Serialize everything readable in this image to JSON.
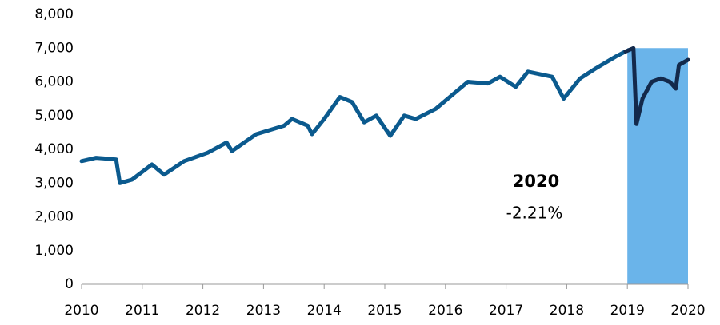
{
  "chart_data": {
    "type": "line",
    "xlim": [
      2010,
      2020
    ],
    "xticks": [
      2010,
      2011,
      2012,
      2013,
      2014,
      2015,
      2016,
      2017,
      2018,
      2019,
      2020
    ],
    "ylim": [
      0,
      8000
    ],
    "yticks": [
      0,
      {
        "value": 1000,
        "label": "1,000"
      },
      {
        "value": 2000,
        "label": "2,000"
      },
      {
        "value": 3000,
        "label": "3,000"
      },
      {
        "value": 4000,
        "label": "4,000"
      },
      {
        "value": 5000,
        "label": "5,000"
      },
      {
        "value": 6000,
        "label": "6,000"
      },
      {
        "value": 7000,
        "label": "7,000"
      },
      {
        "value": 8000,
        "label": "8,000"
      }
    ],
    "highlight": {
      "xlim": [
        2019,
        2020
      ],
      "ylim": [
        0,
        7000
      ],
      "color": "#6ab4ea"
    },
    "annotations": [
      {
        "text": "2020",
        "bold": true
      },
      {
        "text": "-2.21%",
        "bold": false
      }
    ],
    "series": [
      {
        "color": "#0b5a8e",
        "x": [
          2010.0,
          2010.24,
          2010.57,
          2010.63,
          2010.83,
          2011.16,
          2011.36,
          2011.69,
          2012.08,
          2012.39,
          2012.48,
          2012.88,
          2013.34,
          2013.47,
          2013.73,
          2013.8,
          2014.0,
          2014.26,
          2014.46,
          2014.66,
          2014.86,
          2015.09,
          2015.32,
          2015.51,
          2015.84,
          2016.37,
          2016.7,
          2016.9,
          2017.16,
          2017.36,
          2017.76,
          2017.95,
          2018.22,
          2018.48,
          2018.81,
          2018.97
        ],
        "values": [
          3650,
          3750,
          3700,
          3000,
          3100,
          3550,
          3250,
          3650,
          3900,
          4200,
          3950,
          4450,
          4700,
          4900,
          4700,
          4450,
          4900,
          5550,
          5400,
          4800,
          5000,
          4400,
          5000,
          4900,
          5200,
          6000,
          5950,
          6150,
          5850,
          6300,
          6150,
          5500,
          6100,
          6400,
          6750,
          6900
        ]
      },
      {
        "color": "#13294b",
        "x": [
          2018.97,
          2019.1,
          2019.15,
          2019.25,
          2019.4,
          2019.55,
          2019.7,
          2019.8,
          2019.85,
          2020.0
        ],
        "values": [
          6900,
          7000,
          4750,
          5500,
          6000,
          6100,
          6000,
          5800,
          6500,
          6650
        ]
      }
    ]
  }
}
